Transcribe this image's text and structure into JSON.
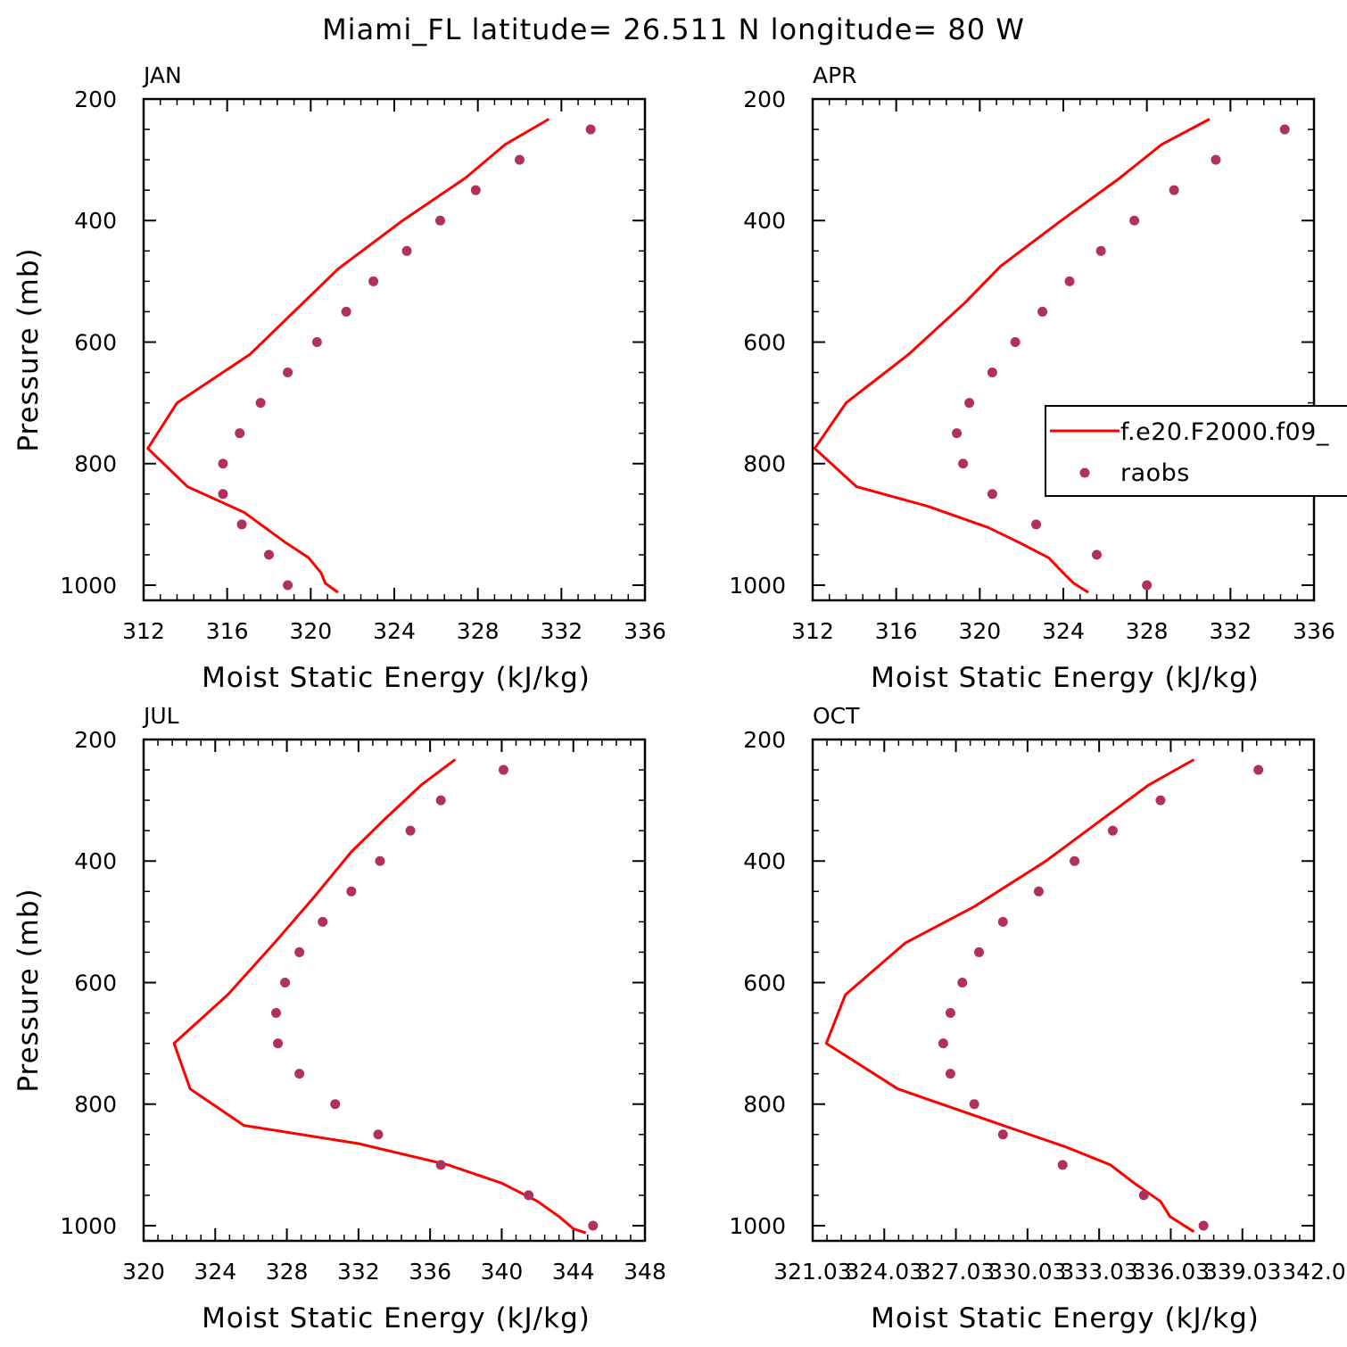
{
  "title": "Miami_FL  latitude= 26.511 N longitude= 80 W",
  "colors": {
    "model": "#ff0000",
    "obs": "#b03060"
  },
  "legend": {
    "model_label": "f.e20.F2000.f09_",
    "obs_label": "raobs"
  },
  "chart_data": [
    {
      "type": "line",
      "panel": "JAN",
      "xlabel": "Moist Static Energy (kJ/kg)",
      "ylabel": "Pressure (mb)",
      "xlim": [
        312,
        336
      ],
      "ylim": [
        1025,
        200
      ],
      "xticks": [
        312,
        316,
        320,
        324,
        328,
        332,
        336
      ],
      "xtick_labels": [
        "312",
        "316",
        "320",
        "324",
        "328",
        "332",
        "336"
      ],
      "yticks": [
        200,
        400,
        600,
        800,
        1000
      ],
      "y_log": false,
      "series": [
        {
          "name": "f.e20.F2000.f09_",
          "mode": "line",
          "x": [
            331.4,
            329.3,
            327.4,
            324.4,
            321.3,
            319.5,
            317.1,
            313.6,
            312.2,
            314.1,
            316.8,
            318.8,
            319.9,
            320.5,
            320.7,
            321.3
          ],
          "y": [
            233,
            275,
            330,
            400,
            480,
            540,
            620,
            700,
            775,
            838,
            880,
            930,
            955,
            980,
            997,
            1012
          ]
        },
        {
          "name": "raobs",
          "mode": "markers",
          "x": [
            333.4,
            330.0,
            327.9,
            326.2,
            324.6,
            323.0,
            321.7,
            320.3,
            318.9,
            317.6,
            316.6,
            315.8,
            315.8,
            316.7,
            318.0,
            318.9
          ],
          "y": [
            250,
            300,
            350,
            400,
            450,
            500,
            550,
            600,
            650,
            700,
            750,
            800,
            850,
            900,
            950,
            1000
          ]
        }
      ]
    },
    {
      "type": "line",
      "panel": "APR",
      "xlabel": "Moist Static Energy (kJ/kg)",
      "ylabel": "",
      "xlim": [
        312,
        336
      ],
      "ylim": [
        1025,
        200
      ],
      "xticks": [
        312,
        316,
        320,
        324,
        328,
        332,
        336
      ],
      "xtick_labels": [
        "312",
        "316",
        "320",
        "324",
        "328",
        "332",
        "336"
      ],
      "yticks": [
        200,
        400,
        600,
        800,
        1000
      ],
      "y_log": false,
      "legend": "right",
      "series": [
        {
          "name": "f.e20.F2000.f09_",
          "mode": "line",
          "x": [
            331.0,
            328.7,
            326.7,
            323.9,
            321.0,
            319.3,
            316.6,
            313.6,
            312.1,
            314.1,
            317.5,
            320.4,
            321.9,
            323.3,
            324.0,
            324.5,
            325.2
          ],
          "y": [
            233,
            275,
            330,
            400,
            475,
            535,
            620,
            700,
            775,
            838,
            870,
            905,
            930,
            955,
            980,
            997,
            1012
          ]
        },
        {
          "name": "raobs",
          "mode": "markers",
          "x": [
            334.6,
            331.3,
            329.3,
            327.4,
            325.8,
            324.3,
            323.0,
            321.7,
            320.6,
            319.5,
            318.9,
            319.2,
            320.6,
            322.7,
            325.6,
            328.0
          ],
          "y": [
            250,
            300,
            350,
            400,
            450,
            500,
            550,
            600,
            650,
            700,
            750,
            800,
            850,
            900,
            950,
            1000
          ]
        }
      ]
    },
    {
      "type": "line",
      "panel": "JUL",
      "xlabel": "Moist Static Energy (kJ/kg)",
      "ylabel": "Pressure (mb)",
      "xlim": [
        320,
        348
      ],
      "ylim": [
        1025,
        200
      ],
      "xticks": [
        320,
        324,
        328,
        332,
        336,
        340,
        344,
        348
      ],
      "xtick_labels": [
        "320",
        "324",
        "328",
        "332",
        "336",
        "340",
        "344",
        "348"
      ],
      "yticks": [
        200,
        400,
        600,
        800,
        1000
      ],
      "y_log": false,
      "series": [
        {
          "name": "f.e20.F2000.f09_",
          "mode": "line",
          "x": [
            337.4,
            335.5,
            333.5,
            331.6,
            329.5,
            327.3,
            324.7,
            321.7,
            322.6,
            325.6,
            332.0,
            337.0,
            340.0,
            342.0,
            343.2,
            344.0,
            344.7
          ],
          "y": [
            233,
            275,
            330,
            385,
            460,
            535,
            620,
            700,
            775,
            835,
            865,
            900,
            930,
            960,
            985,
            1005,
            1012
          ]
        },
        {
          "name": "raobs",
          "mode": "markers",
          "x": [
            340.1,
            336.6,
            334.9,
            333.2,
            331.6,
            330.0,
            328.7,
            327.9,
            327.4,
            327.5,
            328.7,
            330.7,
            333.1,
            336.6,
            341.5,
            345.1
          ],
          "y": [
            250,
            300,
            350,
            400,
            450,
            500,
            550,
            600,
            650,
            700,
            750,
            800,
            850,
            900,
            950,
            1000
          ]
        }
      ]
    },
    {
      "type": "line",
      "panel": "OCT",
      "xlabel": "Moist Static Energy (kJ/kg)",
      "ylabel": "",
      "xlim": [
        321.03,
        342.03
      ],
      "ylim": [
        1025,
        200
      ],
      "xticks": [
        321.03,
        324.03,
        327.03,
        330.03,
        333.03,
        336.03,
        339.03,
        342.03
      ],
      "xtick_labels": [
        "321.03",
        "324.03",
        "327.03",
        "330.03",
        "333.03",
        "336.03",
        "339.03",
        "342.0"
      ],
      "yticks": [
        200,
        400,
        600,
        800,
        1000
      ],
      "y_log": false,
      "series": [
        {
          "name": "f.e20.F2000.f09_",
          "mode": "line",
          "x": [
            337.0,
            335.1,
            333.2,
            330.8,
            327.8,
            324.9,
            322.4,
            321.6,
            324.6,
            329.0,
            331.6,
            333.5,
            334.5,
            335.6,
            336.0,
            337.0
          ],
          "y": [
            233,
            275,
            330,
            400,
            475,
            535,
            620,
            700,
            775,
            835,
            870,
            900,
            930,
            960,
            985,
            1010
          ]
        },
        {
          "name": "raobs",
          "mode": "markers",
          "x": [
            339.7,
            335.6,
            333.6,
            332.0,
            330.5,
            329.0,
            328.0,
            327.3,
            326.8,
            326.5,
            326.8,
            327.8,
            329.0,
            331.5,
            334.9,
            337.4
          ],
          "y": [
            250,
            300,
            350,
            400,
            450,
            500,
            550,
            600,
            650,
            700,
            750,
            800,
            850,
            900,
            950,
            1000
          ]
        }
      ]
    }
  ]
}
